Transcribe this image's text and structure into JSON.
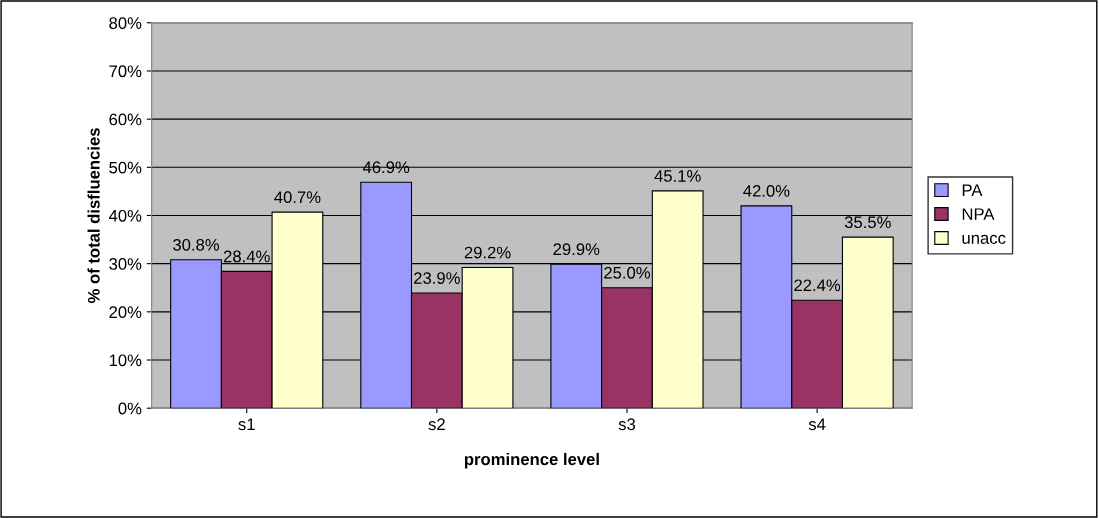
{
  "chart_data": {
    "type": "bar",
    "xlabel": "prominence level",
    "ylabel": "% of total disfluencies",
    "categories": [
      "s1",
      "s2",
      "s3",
      "s4"
    ],
    "series": [
      {
        "name": "PA",
        "color": "#9999ff",
        "values": [
          30.8,
          46.9,
          29.9,
          42.0
        ],
        "value_labels": [
          "30.8%",
          "46.9%",
          "29.9%",
          "42.0%"
        ]
      },
      {
        "name": "NPA",
        "color": "#993366",
        "values": [
          28.4,
          23.9,
          25.0,
          22.4
        ],
        "value_labels": [
          "28.4%",
          "23.9%",
          "25.0%",
          "22.4%"
        ]
      },
      {
        "name": "unacc",
        "color": "#ffffcc",
        "values": [
          40.7,
          29.2,
          45.1,
          35.5
        ],
        "value_labels": [
          "40.7%",
          "29.2%",
          "45.1%",
          "35.5%"
        ]
      }
    ],
    "ylim": [
      0,
      80
    ],
    "yticks": [
      {
        "value": 0,
        "label": "0%"
      },
      {
        "value": 10,
        "label": "10%"
      },
      {
        "value": 20,
        "label": "20%"
      },
      {
        "value": 30,
        "label": "30%"
      },
      {
        "value": 40,
        "label": "40%"
      },
      {
        "value": 50,
        "label": "50%"
      },
      {
        "value": 60,
        "label": "60%"
      },
      {
        "value": 70,
        "label": "70%"
      },
      {
        "value": 80,
        "label": "80%"
      }
    ],
    "grid": "y",
    "legend": "right"
  }
}
